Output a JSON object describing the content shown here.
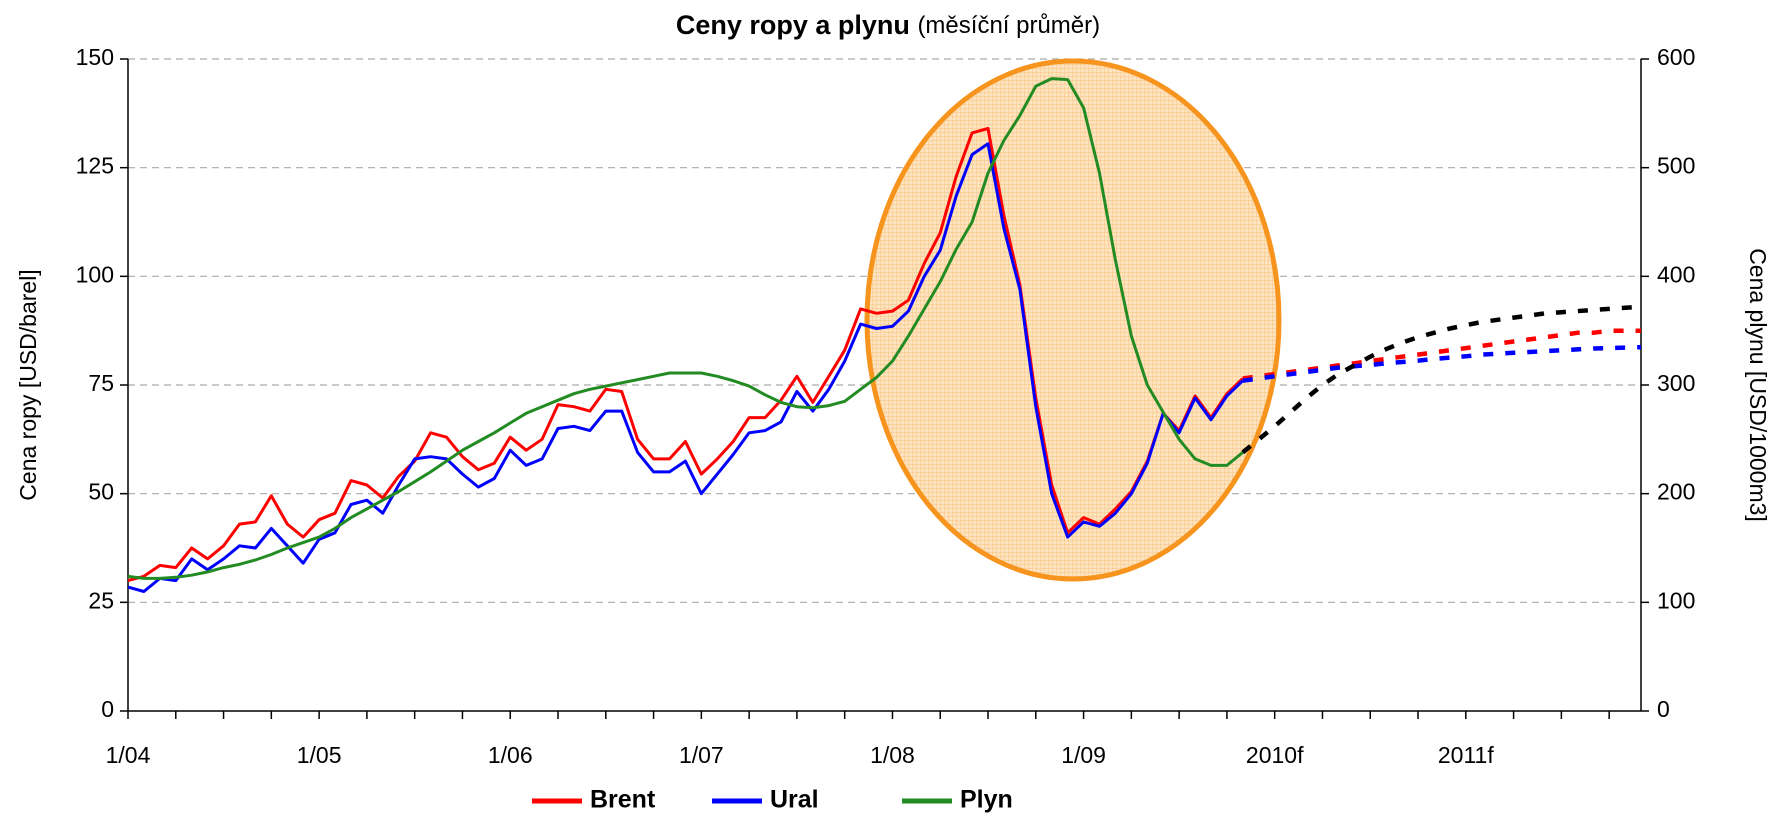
{
  "chart_data": {
    "type": "line",
    "title": "Ceny ropy a plynu",
    "subtitle": "(měsíční průměr)",
    "ylabel": "Cena ropy [USD/barel]",
    "y2label": "Cena plynu [USD/1000m3]",
    "categories": [
      "1/04",
      null,
      null,
      null,
      null,
      null,
      null,
      null,
      null,
      null,
      null,
      null,
      "1/05",
      null,
      null,
      null,
      null,
      null,
      null,
      null,
      null,
      null,
      null,
      null,
      "1/06",
      null,
      null,
      null,
      null,
      null,
      null,
      null,
      null,
      null,
      null,
      null,
      "1/07",
      null,
      null,
      null,
      null,
      null,
      null,
      null,
      null,
      null,
      null,
      null,
      "1/08",
      null,
      null,
      null,
      null,
      null,
      null,
      null,
      null,
      null,
      null,
      null,
      "1/09",
      null,
      null,
      null,
      null,
      null,
      null,
      null,
      null,
      null,
      null,
      null,
      "2010f",
      null,
      null,
      null,
      null,
      null,
      null,
      null,
      null,
      null,
      null,
      null,
      "2011f",
      null,
      null,
      null,
      null,
      null,
      null,
      null,
      null,
      null,
      null,
      null
    ],
    "ylim": [
      0,
      150
    ],
    "yticks": [
      0,
      25,
      50,
      75,
      100,
      125,
      150
    ],
    "y2lim": [
      0,
      600
    ],
    "y2ticks": [
      0,
      100,
      200,
      300,
      400,
      500,
      600
    ],
    "grid": true,
    "legend": "bottom",
    "series": [
      {
        "name": "Brent",
        "color": "#ff0000",
        "forecast_color": "#ff0000",
        "values": [
          30,
          31,
          33.5,
          33,
          37.5,
          35,
          38,
          43,
          43.5,
          49.5,
          43,
          40,
          44,
          45.5,
          53,
          52,
          49,
          54,
          57.5,
          64,
          63,
          58.5,
          55.5,
          57,
          63,
          60,
          62.5,
          70.5,
          70,
          69,
          74,
          73.5,
          62.5,
          58,
          58,
          62,
          54.5,
          58,
          62,
          67.5,
          67.5,
          71.5,
          77,
          71,
          77,
          83,
          92.5,
          91.5,
          92,
          94.5,
          103,
          110,
          123,
          133,
          134,
          114,
          98,
          72,
          52,
          41,
          44.5,
          43,
          46.5,
          50.5,
          57.5,
          68.5,
          64.5,
          72.5,
          67.5,
          73,
          76.5,
          null,
          null,
          null,
          null,
          null,
          null,
          null,
          null,
          null,
          null,
          null,
          null,
          null,
          null,
          null,
          null,
          null,
          null,
          null,
          null,
          null,
          null,
          null,
          null,
          null
        ],
        "forecast": [
          null,
          null,
          null,
          null,
          null,
          null,
          null,
          null,
          null,
          null,
          null,
          null,
          null,
          null,
          null,
          null,
          null,
          null,
          null,
          null,
          null,
          null,
          null,
          null,
          null,
          null,
          null,
          null,
          null,
          null,
          null,
          null,
          null,
          null,
          null,
          null,
          null,
          null,
          null,
          null,
          null,
          null,
          null,
          null,
          null,
          null,
          null,
          null,
          null,
          null,
          null,
          null,
          null,
          null,
          null,
          null,
          null,
          null,
          null,
          null,
          null,
          null,
          null,
          null,
          null,
          null,
          null,
          null,
          null,
          null,
          76.5,
          77,
          77.5,
          78,
          78.5,
          79,
          79.5,
          80,
          80.5,
          81,
          81.5,
          82,
          82.5,
          83,
          83.5,
          84,
          84.5,
          85,
          85.5,
          86,
          86.5,
          87,
          87,
          87.5,
          87.5,
          87.5
        ]
      },
      {
        "name": "Ural",
        "color": "#0000ff",
        "forecast_color": "#0000ff",
        "values": [
          28.5,
          27.5,
          30.5,
          30,
          35,
          32.5,
          35,
          38,
          37.5,
          42,
          38,
          34,
          39.5,
          41,
          47.5,
          48.5,
          45.5,
          52,
          58,
          58.5,
          58,
          54.5,
          51.5,
          53.5,
          60,
          56.5,
          58,
          65,
          65.5,
          64.5,
          69,
          69,
          59.5,
          55,
          55,
          57.5,
          50,
          54.5,
          59,
          64,
          64.5,
          66.5,
          73.5,
          69,
          74,
          80.5,
          89,
          88,
          88.5,
          92,
          100,
          106,
          118.5,
          128,
          130.5,
          111,
          97,
          70,
          50,
          40,
          43.5,
          42.5,
          45.5,
          50,
          57,
          68.5,
          64,
          72,
          67,
          72.5,
          76,
          null,
          null,
          null,
          null,
          null,
          null,
          null,
          null,
          null,
          null,
          null,
          null,
          null,
          null,
          null,
          null,
          null,
          null,
          null,
          null,
          null,
          null,
          null,
          null,
          null
        ],
        "forecast": [
          null,
          null,
          null,
          null,
          null,
          null,
          null,
          null,
          null,
          null,
          null,
          null,
          null,
          null,
          null,
          null,
          null,
          null,
          null,
          null,
          null,
          null,
          null,
          null,
          null,
          null,
          null,
          null,
          null,
          null,
          null,
          null,
          null,
          null,
          null,
          null,
          null,
          null,
          null,
          null,
          null,
          null,
          null,
          null,
          null,
          null,
          null,
          null,
          null,
          null,
          null,
          null,
          null,
          null,
          null,
          null,
          null,
          null,
          null,
          null,
          null,
          null,
          null,
          null,
          null,
          null,
          null,
          null,
          null,
          null,
          76,
          76.5,
          77,
          77.5,
          78,
          78.5,
          79,
          79.3,
          79.6,
          80,
          80.3,
          80.6,
          81,
          81.3,
          81.6,
          82,
          82.2,
          82.4,
          82.6,
          82.8,
          83,
          83.2,
          83.4,
          83.5,
          83.6,
          83.7
        ]
      },
      {
        "name": "Plyn",
        "color": "#228b22",
        "forecast_color": "#000000",
        "axis": "y2",
        "values": [
          124,
          122,
          122,
          123,
          125,
          128,
          132,
          135,
          139,
          144,
          150,
          155,
          160,
          168,
          178,
          186,
          194,
          202,
          211,
          220,
          230,
          240,
          248,
          256,
          265,
          274,
          280,
          286,
          292,
          296,
          299,
          302,
          305,
          308,
          311,
          311,
          311,
          308,
          304,
          299,
          291,
          284,
          280,
          279,
          281,
          285,
          296,
          307,
          322,
          345,
          370,
          395,
          425,
          450,
          495,
          525,
          548,
          575,
          582,
          581,
          555,
          495,
          415,
          345,
          300,
          275,
          250,
          232,
          226,
          226,
          238,
          null,
          null,
          null,
          null,
          null,
          null,
          null,
          null,
          null,
          null,
          null,
          null,
          null,
          null,
          null,
          null,
          null,
          null,
          null,
          null,
          null,
          null,
          null,
          null,
          null
        ],
        "forecast": [
          null,
          null,
          null,
          null,
          null,
          null,
          null,
          null,
          null,
          null,
          null,
          null,
          null,
          null,
          null,
          null,
          null,
          null,
          null,
          null,
          null,
          null,
          null,
          null,
          null,
          null,
          null,
          null,
          null,
          null,
          null,
          null,
          null,
          null,
          null,
          null,
          null,
          null,
          null,
          null,
          null,
          null,
          null,
          null,
          null,
          null,
          null,
          null,
          null,
          null,
          null,
          null,
          null,
          null,
          null,
          null,
          null,
          null,
          null,
          null,
          null,
          null,
          null,
          null,
          null,
          null,
          null,
          null,
          null,
          null,
          238,
          250,
          262,
          275,
          288,
          300,
          310,
          318,
          326,
          333,
          339,
          344,
          348,
          352,
          355,
          358,
          360,
          362,
          364,
          366,
          367,
          368,
          369,
          370,
          371,
          372
        ]
      }
    ]
  }
}
